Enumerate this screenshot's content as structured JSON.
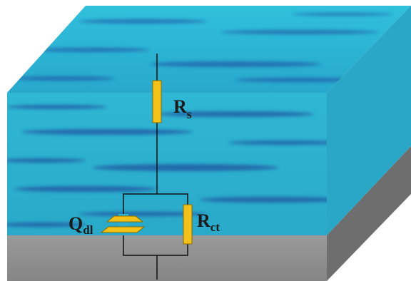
{
  "labels": [
    {
      "main": "R",
      "sub": "s"
    },
    {
      "main": "Q",
      "sub": "dl"
    },
    {
      "main": "R",
      "sub": "ct"
    }
  ]
}
